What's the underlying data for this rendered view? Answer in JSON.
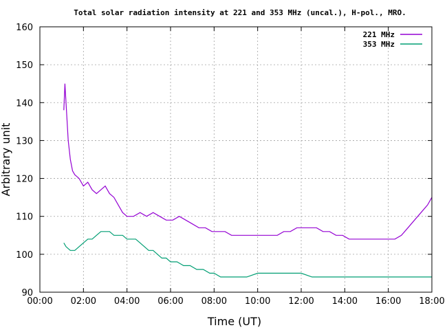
{
  "chart_data": {
    "type": "line",
    "title": "Total solar radiation intensity at 221 and 353 MHz (uncal.), H-pol., MRO.",
    "xlabel": "Time (UT)",
    "ylabel": "Arbitrary unit",
    "xlim": [
      0,
      18
    ],
    "ylim": [
      90,
      160
    ],
    "xticks": [
      0,
      2,
      4,
      6,
      8,
      10,
      12,
      14,
      16,
      18
    ],
    "xtick_labels": [
      "00:00",
      "02:00",
      "04:00",
      "06:00",
      "08:00",
      "10:00",
      "12:00",
      "14:00",
      "16:00",
      "18:00"
    ],
    "yticks": [
      90,
      100,
      110,
      120,
      130,
      140,
      150,
      160
    ],
    "ytick_labels": [
      "90",
      "100",
      "110",
      "120",
      "130",
      "140",
      "150",
      "160"
    ],
    "grid": true,
    "legend_position": "top-right",
    "series": [
      {
        "name": "221 MHz",
        "color": "#9400d3",
        "x": [
          1.1,
          1.15,
          1.2,
          1.3,
          1.4,
          1.5,
          1.6,
          1.8,
          2.0,
          2.2,
          2.4,
          2.6,
          2.8,
          3.0,
          3.2,
          3.4,
          3.6,
          3.8,
          4.0,
          4.3,
          4.6,
          4.9,
          5.2,
          5.5,
          5.8,
          6.1,
          6.4,
          6.7,
          7.0,
          7.3,
          7.6,
          7.9,
          8.2,
          8.5,
          8.8,
          9.1,
          9.4,
          9.7,
          10.0,
          10.3,
          10.6,
          10.9,
          11.2,
          11.5,
          11.8,
          12.1,
          12.4,
          12.7,
          13.0,
          13.3,
          13.6,
          13.9,
          14.2,
          14.5,
          14.8,
          15.1,
          15.4,
          15.7,
          16.0,
          16.3,
          16.6,
          16.9,
          17.2,
          17.5,
          17.8,
          18.0
        ],
        "values": [
          138,
          145,
          140,
          130,
          125,
          122,
          121,
          120,
          118,
          119,
          117,
          116,
          117,
          118,
          116,
          115,
          113,
          111,
          110,
          110,
          111,
          110,
          111,
          110,
          109,
          109,
          110,
          109,
          108,
          107,
          107,
          106,
          106,
          106,
          105,
          105,
          105,
          105,
          105,
          105,
          105,
          105,
          106,
          106,
          107,
          107,
          107,
          107,
          106,
          106,
          105,
          105,
          104,
          104,
          104,
          104,
          104,
          104,
          104,
          104,
          105,
          107,
          109,
          111,
          113,
          115
        ]
      },
      {
        "name": "353 MHz",
        "color": "#009e73",
        "x": [
          1.1,
          1.2,
          1.4,
          1.6,
          1.8,
          2.0,
          2.2,
          2.4,
          2.6,
          2.8,
          3.0,
          3.2,
          3.4,
          3.6,
          3.8,
          4.0,
          4.2,
          4.4,
          4.6,
          4.8,
          5.0,
          5.2,
          5.4,
          5.6,
          5.8,
          6.0,
          6.3,
          6.6,
          6.9,
          7.2,
          7.5,
          7.8,
          8.0,
          8.3,
          8.6,
          9.0,
          9.5,
          10.0,
          10.5,
          11.0,
          11.5,
          12.0,
          12.5,
          13.0,
          13.5,
          14.0,
          14.5,
          15.0,
          15.5,
          16.0,
          16.5,
          17.0,
          17.5,
          18.0
        ],
        "values": [
          103,
          102,
          101,
          101,
          102,
          103,
          104,
          104,
          105,
          106,
          106,
          106,
          105,
          105,
          105,
          104,
          104,
          104,
          103,
          102,
          101,
          101,
          100,
          99,
          99,
          98,
          98,
          97,
          97,
          96,
          96,
          95,
          95,
          94,
          94,
          94,
          94,
          95,
          95,
          95,
          95,
          95,
          94,
          94,
          94,
          94,
          94,
          94,
          94,
          94,
          94,
          94,
          94,
          94
        ]
      }
    ]
  }
}
